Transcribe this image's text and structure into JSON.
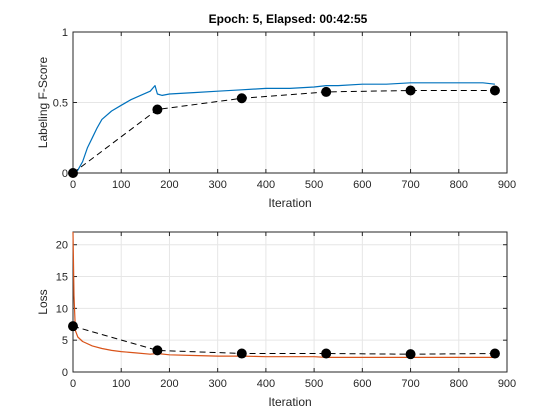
{
  "title": "Epoch: 5, Elapsed: 00:42:55",
  "colors": {
    "score_line": "#0072BD",
    "loss_line": "#D95319",
    "validation_line": "#000000",
    "grid": "#e6e6e6",
    "axis": "#262626"
  },
  "chart_data": [
    {
      "type": "line",
      "title": "Epoch: 5, Elapsed: 00:42:55",
      "xlabel": "Iteration",
      "ylabel": "Labeling F-Score",
      "xlim": [
        0,
        900
      ],
      "ylim": [
        0,
        1
      ],
      "xticks": [
        "0",
        "100",
        "200",
        "300",
        "400",
        "500",
        "600",
        "700",
        "800",
        "900"
      ],
      "yticks": [
        "0",
        "0.5",
        "1"
      ],
      "grid": true,
      "series": [
        {
          "role": "training",
          "style": "solid",
          "x": [
            0,
            10,
            20,
            30,
            40,
            50,
            60,
            80,
            100,
            120,
            140,
            160,
            170,
            175,
            185,
            200,
            250,
            300,
            350,
            400,
            450,
            500,
            525,
            550,
            600,
            650,
            700,
            750,
            800,
            850,
            875
          ],
          "y": [
            0.0,
            0.02,
            0.08,
            0.18,
            0.25,
            0.32,
            0.38,
            0.44,
            0.48,
            0.52,
            0.55,
            0.58,
            0.62,
            0.56,
            0.55,
            0.56,
            0.57,
            0.58,
            0.59,
            0.6,
            0.6,
            0.61,
            0.62,
            0.62,
            0.63,
            0.63,
            0.64,
            0.64,
            0.64,
            0.64,
            0.63
          ]
        },
        {
          "role": "validation",
          "style": "dashed",
          "x": [
            0,
            175,
            350,
            525,
            700,
            875
          ],
          "y": [
            0.0,
            0.45,
            0.53,
            0.575,
            0.585,
            0.585
          ]
        }
      ]
    },
    {
      "type": "line",
      "title": "",
      "xlabel": "Iteration",
      "ylabel": "Loss",
      "xlim": [
        0,
        900
      ],
      "ylim": [
        0,
        22
      ],
      "xticks": [
        "0",
        "100",
        "200",
        "300",
        "400",
        "500",
        "600",
        "700",
        "800",
        "900"
      ],
      "yticks": [
        "0",
        "5",
        "10",
        "15",
        "20"
      ],
      "grid": true,
      "series": [
        {
          "role": "training",
          "style": "solid",
          "x": [
            0,
            2,
            5,
            10,
            20,
            40,
            60,
            80,
            100,
            130,
            160,
            175,
            200,
            250,
            300,
            350,
            400,
            500,
            525,
            600,
            700,
            800,
            875
          ],
          "y": [
            22.0,
            12.0,
            6.5,
            5.5,
            4.8,
            4.1,
            3.7,
            3.4,
            3.2,
            3.0,
            2.8,
            2.9,
            2.7,
            2.6,
            2.5,
            2.5,
            2.4,
            2.4,
            2.3,
            2.3,
            2.3,
            2.3,
            2.3
          ]
        },
        {
          "role": "validation",
          "style": "dashed",
          "x": [
            0,
            175,
            350,
            525,
            700,
            875
          ],
          "y": [
            7.2,
            3.4,
            2.9,
            2.9,
            2.8,
            2.9
          ]
        }
      ]
    }
  ]
}
